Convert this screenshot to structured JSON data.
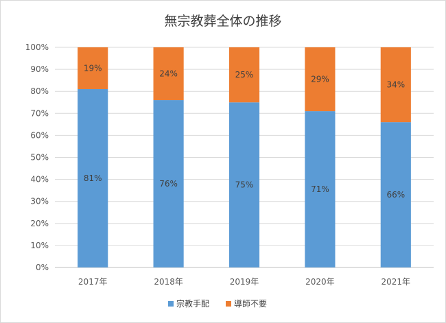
{
  "chart_data": {
    "type": "bar",
    "stacked": true,
    "percent": true,
    "title": "無宗教葬全体の推移",
    "xlabel": "",
    "ylabel": "",
    "categories": [
      "2017年",
      "2018年",
      "2019年",
      "2020年",
      "2021年"
    ],
    "y_ticks": [
      "0%",
      "10%",
      "20%",
      "30%",
      "40%",
      "50%",
      "60%",
      "70%",
      "80%",
      "90%",
      "100%"
    ],
    "ylim": [
      0,
      100
    ],
    "grid": true,
    "legend_position": "bottom",
    "series": [
      {
        "name": "宗教手配",
        "color": "#5b9bd5",
        "values": [
          81,
          76,
          75,
          71,
          66
        ],
        "labels": [
          "81%",
          "76%",
          "75%",
          "71%",
          "66%"
        ]
      },
      {
        "name": "導師不要",
        "color": "#ed7d31",
        "values": [
          19,
          24,
          25,
          29,
          34
        ],
        "labels": [
          "19%",
          "24%",
          "25%",
          "29%",
          "34%"
        ]
      }
    ]
  }
}
